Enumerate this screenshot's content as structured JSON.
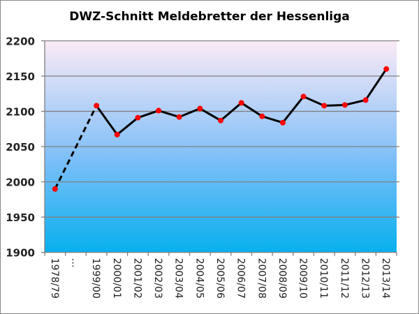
{
  "chart_data": {
    "type": "line",
    "title": "DWZ-Schnitt Meldebretter der Hessenliga",
    "xlabel": "",
    "ylabel": "",
    "ylim": [
      1900,
      2200
    ],
    "yticks": [
      1900,
      1950,
      2000,
      2050,
      2100,
      2150,
      2200
    ],
    "grid": true,
    "categories": [
      "1978/79",
      "…",
      "1999/00",
      "2000/01",
      "2001/02",
      "2002/03",
      "2003/04",
      "2004/05",
      "2005/06",
      "2006/07",
      "2007/08",
      "2008/09",
      "2009/10",
      "2010/11",
      "2011/12",
      "2012/13",
      "2013/14"
    ],
    "series": [
      {
        "name": "DWZ-Schnitt",
        "values": [
          1990,
          null,
          2108,
          2067,
          2091,
          2101,
          2092,
          2104,
          2087,
          2112,
          2093,
          2084,
          2121,
          2108,
          2109,
          2116,
          2160
        ]
      }
    ],
    "colors": {
      "line": "#000000",
      "marker": "#ff0000",
      "bg_top": "#fbeaf6",
      "bg_mid": "#80bff8",
      "bg_bottom": "#07b0ee",
      "grid": "#808080"
    }
  }
}
